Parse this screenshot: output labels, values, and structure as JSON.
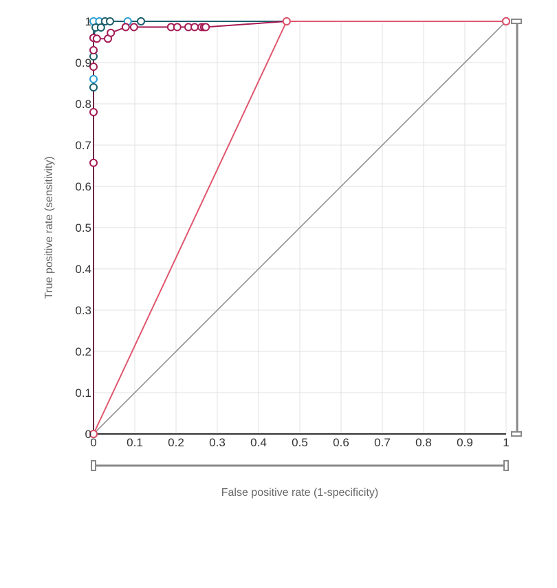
{
  "chart_data": {
    "type": "line",
    "title": "",
    "xlabel": "False positive rate (1-specificity)",
    "ylabel": "True positive rate (sensitivity)",
    "xlim": [
      0,
      1
    ],
    "ylim": [
      0,
      1
    ],
    "xticks": [
      "0",
      "0.1",
      "0.2",
      "0.3",
      "0.4",
      "0.5",
      "0.6",
      "0.7",
      "0.8",
      "0.9",
      "1"
    ],
    "yticks": [
      "0",
      "0.1",
      "0.2",
      "0.3",
      "0.4",
      "0.5",
      "0.6",
      "0.7",
      "0.8",
      "0.9",
      "1"
    ],
    "grid": true,
    "legend": "none",
    "reference_line": {
      "points": [
        [
          0,
          0
        ],
        [
          1,
          1
        ]
      ],
      "color": "#888888"
    },
    "colors": {
      "series_light_blue": "#2b9fd4",
      "series_dark_teal": "#1d5f6b",
      "series_crimson": "#a51c55",
      "series_pink": "#e0566e",
      "grid": "#e0e0e0",
      "axis": "#333333",
      "scrollbar": "#888888"
    },
    "series": [
      {
        "color": "#2b9fd4",
        "points": [
          [
            0,
            0
          ],
          [
            0,
            0.84
          ],
          [
            0,
            0.86
          ],
          [
            0,
            0.93
          ],
          [
            0,
            1
          ],
          [
            0.014,
            1
          ],
          [
            0.083,
            1
          ],
          [
            0.115,
            1
          ],
          [
            1,
            1
          ]
        ]
      },
      {
        "color": "#1d5f6b",
        "points": [
          [
            0,
            0
          ],
          [
            0,
            0.84
          ],
          [
            0,
            0.915
          ],
          [
            0,
            0.96
          ],
          [
            0.005,
            0.985
          ],
          [
            0.018,
            0.985
          ],
          [
            0.028,
            1
          ],
          [
            0.04,
            1
          ],
          [
            0.115,
            1
          ],
          [
            1,
            1
          ]
        ]
      },
      {
        "color": "#a51c55",
        "points": [
          [
            0,
            0
          ],
          [
            0,
            0.657
          ],
          [
            0,
            0.78
          ],
          [
            0,
            0.89
          ],
          [
            0,
            0.93
          ],
          [
            0,
            0.96
          ],
          [
            0.008,
            0.958
          ],
          [
            0.035,
            0.958
          ],
          [
            0.042,
            0.972
          ],
          [
            0.078,
            0.986
          ],
          [
            0.098,
            0.986
          ],
          [
            0.188,
            0.986
          ],
          [
            0.203,
            0.986
          ],
          [
            0.23,
            0.986
          ],
          [
            0.245,
            0.986
          ],
          [
            0.262,
            0.986
          ],
          [
            0.268,
            0.986
          ],
          [
            0.272,
            0.986
          ],
          [
            0.468,
            1
          ],
          [
            1,
            1
          ]
        ]
      },
      {
        "color": "#e0566e",
        "points": [
          [
            0,
            0
          ],
          [
            0.468,
            1
          ],
          [
            1,
            1
          ]
        ]
      }
    ]
  }
}
